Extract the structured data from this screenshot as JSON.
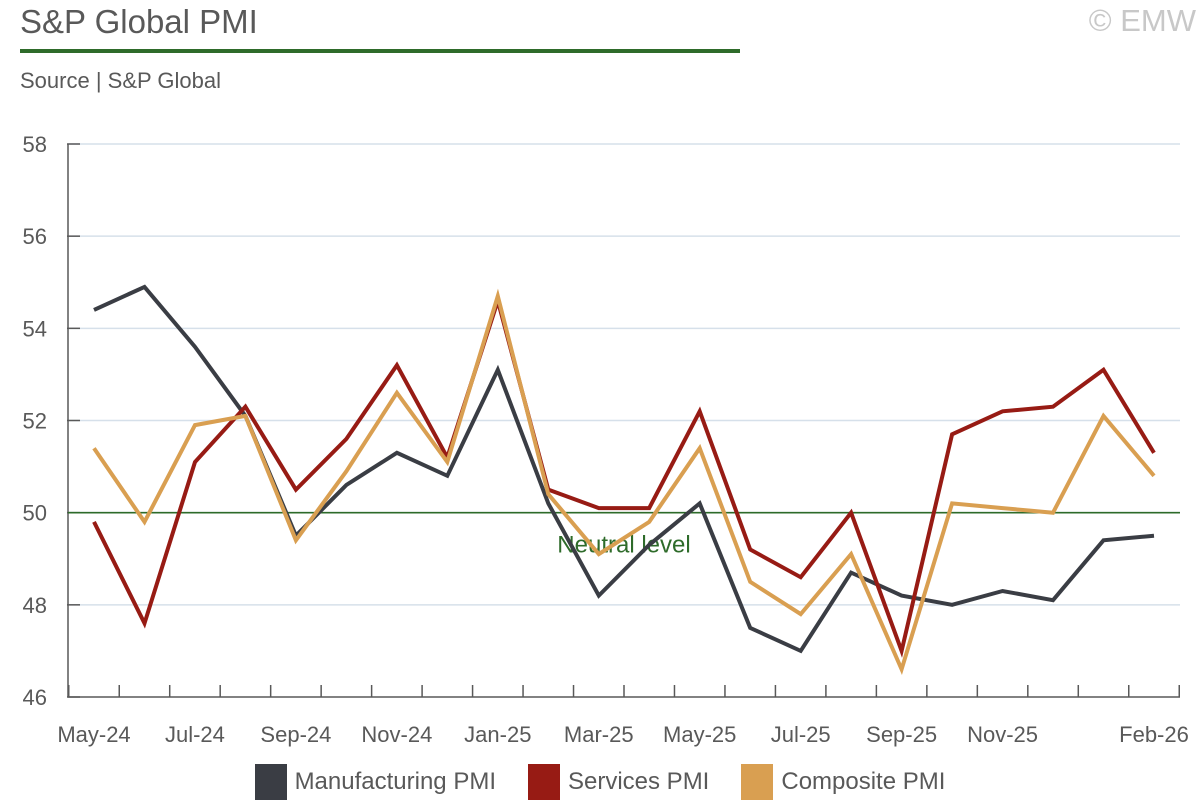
{
  "header": {
    "title": "S&P Global PMI",
    "subtitle": "Source | S&P Global",
    "copyright": "© EMW"
  },
  "colors": {
    "title_rule": "#2e6b2a",
    "neutral": "#2e6b2a",
    "grid": "#d6e0ea",
    "axis": "#595959"
  },
  "chart_data": {
    "type": "line",
    "x": [
      "May-24",
      "Jun-24",
      "Jul-24",
      "Aug-24",
      "Sep-24",
      "Oct-24",
      "Nov-24",
      "Dec-24",
      "Jan-25",
      "Feb-25",
      "Mar-25",
      "Apr-25",
      "May-25",
      "Jun-25",
      "Jul-25",
      "Aug-25",
      "Sep-25",
      "Oct-25",
      "Nov-25",
      "Dec-25",
      "Jan-26",
      "Feb-26"
    ],
    "x_tick_labels": [
      "May-24",
      "",
      "Jul-24",
      "",
      "Sep-24",
      "",
      "Nov-24",
      "",
      "Jan-25",
      "",
      "Mar-25",
      "",
      "May-25",
      "",
      "Jul-25",
      "",
      "Sep-25",
      "",
      "Nov-25",
      "",
      "",
      "Feb-26"
    ],
    "ylim": [
      46,
      58
    ],
    "y_ticks": [
      46,
      48,
      50,
      52,
      54,
      56,
      58
    ],
    "grid": true,
    "legend_position": "bottom",
    "series": [
      {
        "name": "Manufacturing PMI",
        "color": "#3a3d44",
        "values": [
          54.4,
          54.9,
          53.6,
          52.1,
          49.5,
          50.6,
          51.3,
          50.8,
          53.1,
          50.2,
          48.2,
          49.3,
          50.2,
          47.5,
          47.0,
          48.7,
          48.2,
          48.0,
          48.3,
          48.1,
          49.4,
          49.5
        ]
      },
      {
        "name": "Services PMI",
        "color": "#971b14",
        "values": [
          49.8,
          47.6,
          51.1,
          52.3,
          50.5,
          51.6,
          53.2,
          51.2,
          54.6,
          50.5,
          50.1,
          50.1,
          52.2,
          49.2,
          48.6,
          50.0,
          47.0,
          51.7,
          52.2,
          52.3,
          53.1,
          51.3
        ]
      },
      {
        "name": "Composite PMI",
        "color": "#d99f51",
        "values": [
          51.4,
          49.8,
          51.9,
          52.1,
          49.4,
          50.9,
          52.6,
          51.1,
          54.7,
          50.4,
          49.1,
          49.8,
          51.4,
          48.5,
          47.8,
          49.1,
          46.6,
          50.2,
          50.1,
          50.0,
          52.1,
          50.8
        ]
      }
    ],
    "reference_line": {
      "value": 50,
      "label": "Neutral level"
    }
  }
}
